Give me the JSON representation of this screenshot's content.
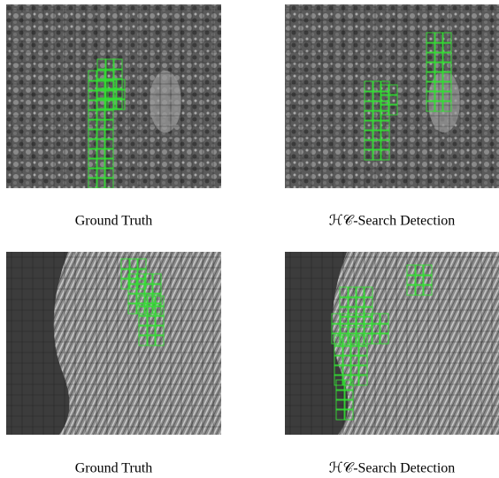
{
  "figure": {
    "panels": [
      {
        "caption": "Ground Truth"
      },
      {
        "caption": "ℋ𝒞-Search Detection"
      },
      {
        "caption": "Ground Truth"
      },
      {
        "caption": "ℋ𝒞-Search Detection"
      }
    ]
  }
}
